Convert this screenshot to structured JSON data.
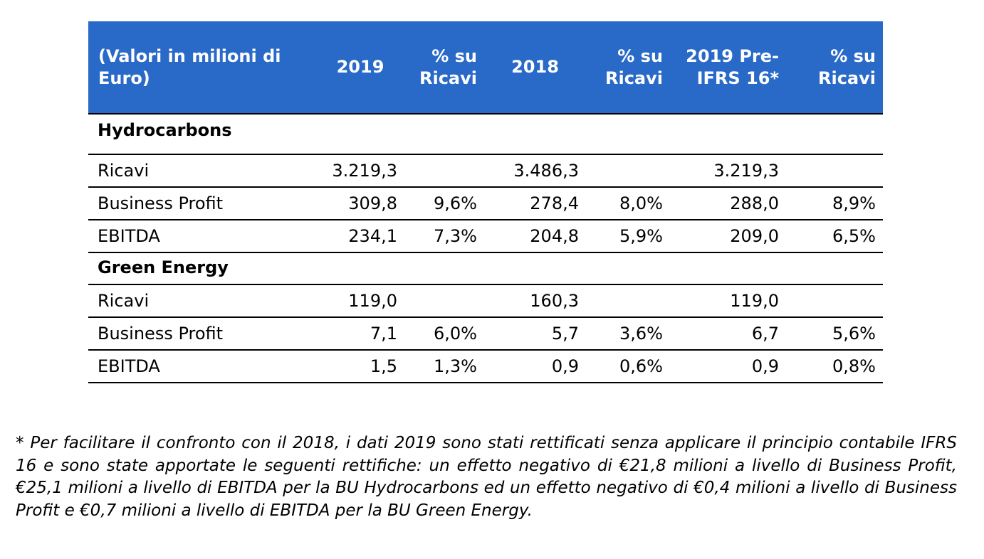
{
  "table": {
    "headers": {
      "label": "(Valori in milioni di Euro)",
      "col_2019": "2019",
      "col_pct_2019": "% su Ricavi",
      "col_2018": "2018",
      "col_pct_2018": "% su Ricavi",
      "col_2019_pre": "2019 Pre-IFRS 16*",
      "col_pct_2019_pre": "% su Ricavi"
    },
    "header_bg_color": "#2969c8",
    "sections": [
      {
        "title": "Hydrocarbons",
        "rows": [
          {
            "label": "Ricavi",
            "v2019": "3.219,3",
            "p2019": "",
            "v2018": "3.486,3",
            "p2018": "",
            "vpre": "3.219,3",
            "ppre": ""
          },
          {
            "label": "Business Profit",
            "v2019": "309,8",
            "p2019": "9,6%",
            "v2018": "278,4",
            "p2018": "8,0%",
            "vpre": "288,0",
            "ppre": "8,9%"
          },
          {
            "label": "EBITDA",
            "v2019": "234,1",
            "p2019": "7,3%",
            "v2018": "204,8",
            "p2018": "5,9%",
            "vpre": "209,0",
            "ppre": "6,5%"
          }
        ]
      },
      {
        "title": "Green Energy",
        "rows": [
          {
            "label": "Ricavi",
            "v2019": "119,0",
            "p2019": "",
            "v2018": "160,3",
            "p2018": "",
            "vpre": "119,0",
            "ppre": ""
          },
          {
            "label": "Business Profit",
            "v2019": "7,1",
            "p2019": "6,0%",
            "v2018": "5,7",
            "p2018": "3,6%",
            "vpre": "6,7",
            "ppre": "5,6%"
          },
          {
            "label": "EBITDA",
            "v2019": "1,5",
            "p2019": "1,3%",
            "v2018": "0,9",
            "p2018": "0,6%",
            "vpre": "0,9",
            "ppre": "0,8%"
          }
        ]
      }
    ]
  },
  "footnote": "* Per facilitare il confronto con il 2018, i dati 2019 sono stati rettificati senza applicare il principio contabile IFRS 16 e sono state apportate le seguenti rettifiche: un effetto negativo di €21,8 milioni a livello di Business Profit, €25,1 milioni a livello di EBITDA per la BU Hydrocarbons ed un effetto negativo di €0,4 milioni a livello di Business Profit e €0,7 milioni a livello di EBITDA per la BU Green Energy."
}
